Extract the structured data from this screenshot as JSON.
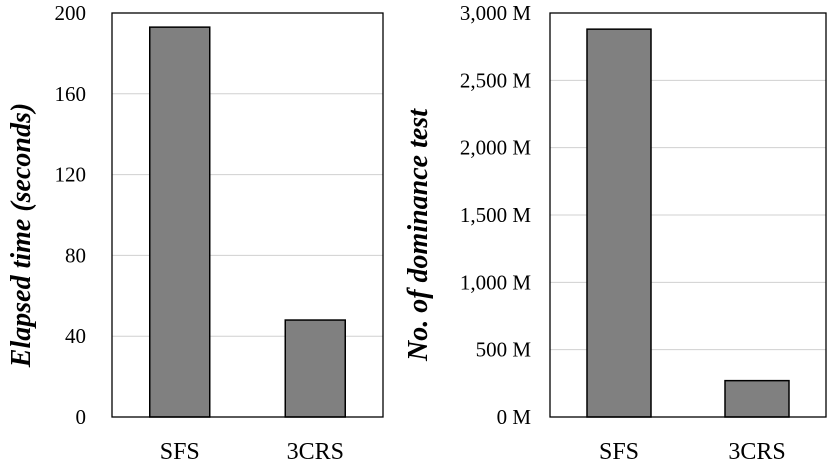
{
  "chart_data": [
    {
      "type": "bar",
      "categories": [
        "SFS",
        "3CRS"
      ],
      "values": [
        193,
        48
      ],
      "ylabel": "Elapsed time (seconds)",
      "ylim": [
        0,
        200
      ],
      "yticks": [
        0,
        40,
        80,
        120,
        160,
        200
      ],
      "ytick_labels": [
        "0",
        "40",
        "80",
        "120",
        "160",
        "200"
      ],
      "grid": true,
      "bar_color": "#808080"
    },
    {
      "type": "bar",
      "categories": [
        "SFS",
        "3CRS"
      ],
      "values": [
        2880000000,
        270000000
      ],
      "ylabel": "No. of dominance test",
      "ylim": [
        0,
        3000000000
      ],
      "yticks": [
        0,
        500000000,
        1000000000,
        1500000000,
        2000000000,
        2500000000,
        3000000000
      ],
      "ytick_labels": [
        "0 M",
        "500 M",
        "1,000 M",
        "1,500 M",
        "2,000 M",
        "2,500 M",
        "3,000 M"
      ],
      "grid": true,
      "bar_color": "#808080"
    }
  ]
}
